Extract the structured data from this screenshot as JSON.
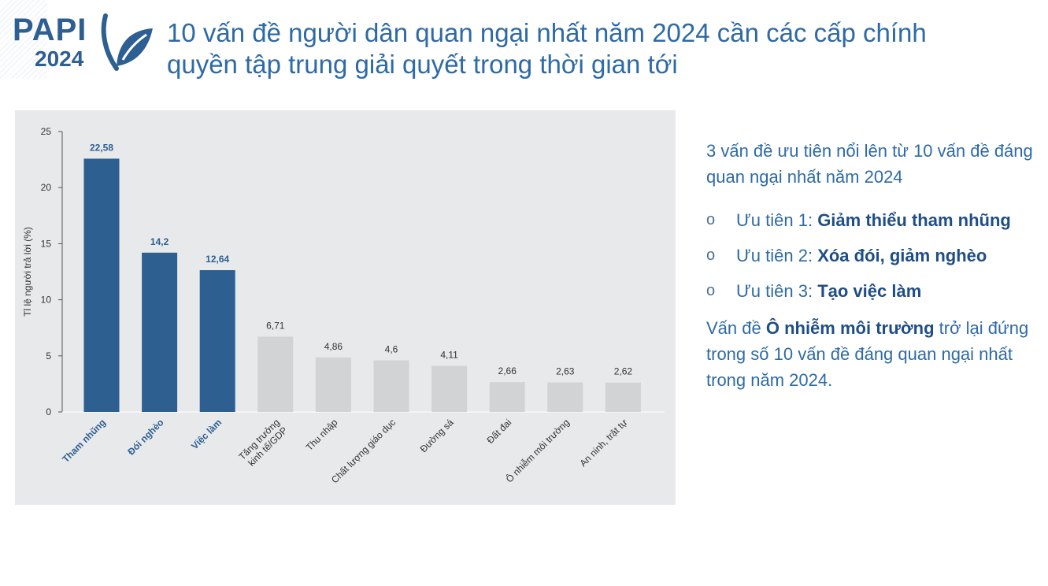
{
  "logo": {
    "name": "PAPI",
    "year": "2024",
    "colors": {
      "primary": "#2e5f93"
    }
  },
  "title": "10 vấn đề người dân quan ngại nhất năm 2024 cần các cấp chính quyền tập trung giải quyết trong thời gian tới",
  "chart_data": {
    "type": "bar",
    "ylabel": "Tỉ lệ người trả lời (%)",
    "ylim": [
      0,
      25
    ],
    "yticks": [
      0,
      5,
      10,
      15,
      20,
      25
    ],
    "grid": false,
    "categories": [
      "Tham nhũng",
      "Đói nghèo",
      "Việc làm",
      "Tăng trưởng kinh tế/GDP",
      "Thu nhập",
      "Chất lượng giáo dục",
      "Đường sá",
      "Đất đai",
      "Ô nhiễm môi trường",
      "An ninh, trật tự"
    ],
    "category_lines": [
      [
        "Tham nhũng"
      ],
      [
        "Đói nghèo"
      ],
      [
        "Việc làm"
      ],
      [
        "Tăng trưởng",
        "kinh tế/GDP"
      ],
      [
        "Thu nhập"
      ],
      [
        "Chất lượng giáo dục"
      ],
      [
        "Đường sá"
      ],
      [
        "Đất đai"
      ],
      [
        "Ô nhiễm môi trường"
      ],
      [
        "An ninh, trật tự"
      ]
    ],
    "values": [
      22.58,
      14.2,
      12.64,
      6.71,
      4.86,
      4.6,
      4.11,
      2.66,
      2.63,
      2.62
    ],
    "data_labels": [
      "22,58",
      "14,2",
      "12,64",
      "6,71",
      "4,86",
      "4,6",
      "4,11",
      "2,66",
      "2,63",
      "2,62"
    ],
    "highlighted": [
      true,
      true,
      true,
      false,
      false,
      false,
      false,
      false,
      false,
      false
    ],
    "colors": {
      "highlight": "#2d5f91",
      "normal": "#d2d3d5",
      "highlight_text": "#2d5f91",
      "normal_text": "#333333"
    }
  },
  "side": {
    "intro": "3 vấn đề ưu tiên nổi lên từ 10 vấn đề đáng quan ngại nhất năm 2024",
    "bullet": "o",
    "priorities": [
      {
        "prefix": "Ưu tiên 1: ",
        "bold": "Giảm thiểu tham nhũng"
      },
      {
        "prefix": "Ưu tiên 2: ",
        "bold": "Xóa đói, giảm nghèo"
      },
      {
        "prefix": "Ưu tiên 3: ",
        "bold": "Tạo việc làm"
      }
    ],
    "outro": {
      "before": "Vấn đề ",
      "bold": "Ô nhiễm môi trường",
      "after": " trở lại đứng trong số 10 vấn đề đáng quan ngại nhất trong năm 2024."
    }
  }
}
